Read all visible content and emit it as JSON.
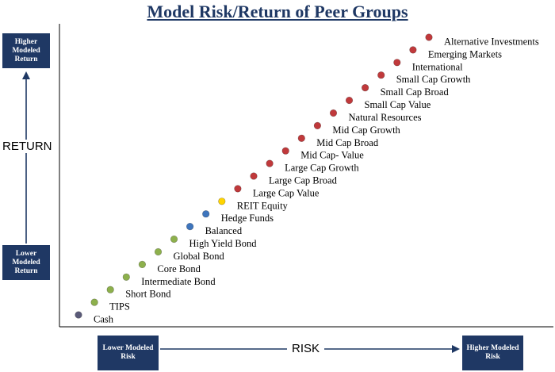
{
  "title": "Model Risk/Return of Peer Groups",
  "y_axis": {
    "label": "RETURN",
    "top_box": "Higher Modeled Return",
    "bottom_box": "Lower Modeled Return"
  },
  "x_axis": {
    "label": "RISK",
    "left_box": "Lower Modeled Risk",
    "right_box": "Higher Modeled Risk"
  },
  "colors": {
    "navy": "#1f3864",
    "cash": "#5a5a78",
    "fixed_income": "#8db04c",
    "balanced": "#3e75bd",
    "reit": "#ffd400",
    "equity": "#c0393b"
  },
  "chart_data": {
    "type": "scatter",
    "title": "Model Risk/Return of Peer Groups",
    "xlabel": "RISK",
    "ylabel": "RETURN",
    "grid": false,
    "note": "Ordinal ranking: each point is one rank higher in both risk and return",
    "points": [
      {
        "label": "Cash",
        "x": 1,
        "y": 1,
        "color": "#5a5a78"
      },
      {
        "label": "TIPS",
        "x": 2,
        "y": 2,
        "color": "#8db04c"
      },
      {
        "label": "Short Bond",
        "x": 3,
        "y": 3,
        "color": "#8db04c"
      },
      {
        "label": "Intermediate Bond",
        "x": 4,
        "y": 4,
        "color": "#8db04c"
      },
      {
        "label": "Core Bond",
        "x": 5,
        "y": 5,
        "color": "#8db04c"
      },
      {
        "label": "Global Bond",
        "x": 6,
        "y": 6,
        "color": "#8db04c"
      },
      {
        "label": "High Yield Bond",
        "x": 7,
        "y": 7,
        "color": "#8db04c"
      },
      {
        "label": "Balanced",
        "x": 8,
        "y": 8,
        "color": "#3e75bd"
      },
      {
        "label": "Hedge Funds",
        "x": 9,
        "y": 9,
        "color": "#3e75bd"
      },
      {
        "label": "REIT Equity",
        "x": 10,
        "y": 10,
        "color": "#ffd400"
      },
      {
        "label": "Large Cap Value",
        "x": 11,
        "y": 11,
        "color": "#c0393b"
      },
      {
        "label": "Large Cap Broad",
        "x": 12,
        "y": 12,
        "color": "#c0393b"
      },
      {
        "label": "Large Cap Growth",
        "x": 13,
        "y": 13,
        "color": "#c0393b"
      },
      {
        "label": "Mid Cap- Value",
        "x": 14,
        "y": 14,
        "color": "#c0393b"
      },
      {
        "label": "Mid Cap Broad",
        "x": 15,
        "y": 15,
        "color": "#c0393b"
      },
      {
        "label": "Mid Cap Growth",
        "x": 16,
        "y": 16,
        "color": "#c0393b"
      },
      {
        "label": "Natural Resources",
        "x": 17,
        "y": 17,
        "color": "#c0393b"
      },
      {
        "label": "Small Cap Value",
        "x": 18,
        "y": 18,
        "color": "#c0393b"
      },
      {
        "label": "Small Cap Broad",
        "x": 19,
        "y": 19,
        "color": "#c0393b"
      },
      {
        "label": "Small Cap Growth",
        "x": 20,
        "y": 20,
        "color": "#c0393b"
      },
      {
        "label": "International",
        "x": 21,
        "y": 21,
        "color": "#c0393b"
      },
      {
        "label": "Emerging Markets",
        "x": 22,
        "y": 22,
        "color": "#c0393b"
      },
      {
        "label": "Alternative Investments",
        "x": 23,
        "y": 23,
        "color": "#c0393b"
      }
    ]
  }
}
